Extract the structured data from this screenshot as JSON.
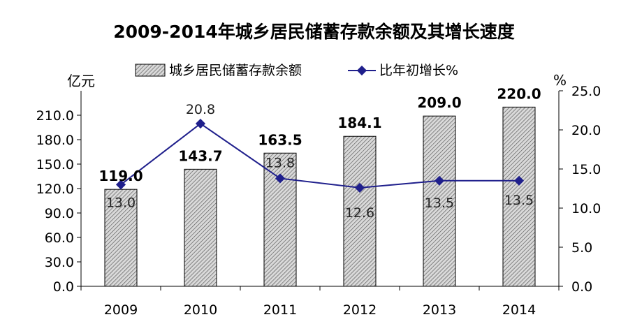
{
  "chart_data": {
    "type": "bar",
    "title": "2009-2014年城乡居民储蓄存款余额及其增长速度",
    "categories": [
      "2009",
      "2010",
      "2011",
      "2012",
      "2013",
      "2014"
    ],
    "series": [
      {
        "name": "城乡居民储蓄存款余额",
        "type": "bar",
        "axis": "left",
        "values": [
          119.0,
          143.7,
          163.5,
          184.1,
          209.0,
          220.0
        ],
        "labels": [
          "119.0",
          "143.7",
          "163.5",
          "184.1",
          "209.0",
          "220.0"
        ]
      },
      {
        "name": "比年初增长%",
        "type": "line",
        "axis": "right",
        "values": [
          13.0,
          20.8,
          13.8,
          12.6,
          13.5,
          13.5
        ],
        "labels": [
          "13.0",
          "20.8",
          "13.8",
          "12.6",
          "13.5",
          "13.5"
        ],
        "color": "#1f1f8c"
      }
    ],
    "ylabel_left": "亿元",
    "ylabel_right": "%",
    "ylim_left": [
      0,
      240
    ],
    "ylim_right": [
      0,
      25
    ],
    "yticks_left": [
      "0.0",
      "30.0",
      "60.0",
      "90.0",
      "120.0",
      "150.0",
      "180.0",
      "210.0"
    ],
    "yticks_right": [
      "0.0",
      "5.0",
      "10.0",
      "15.0",
      "20.0",
      "25.0"
    ],
    "legend_position": "top",
    "grid": false,
    "bar_fill": "hatched-gray"
  }
}
